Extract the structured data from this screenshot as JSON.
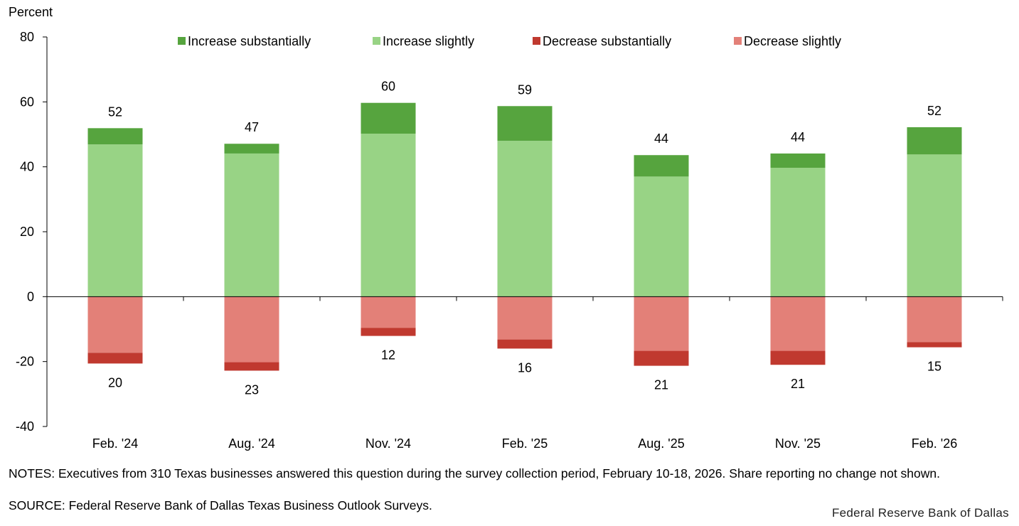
{
  "chart_data": {
    "type": "bar",
    "stacked": true,
    "ylabel": "Percent",
    "ylim": [
      -40,
      80
    ],
    "yticks": [
      -40,
      -20,
      0,
      20,
      40,
      60,
      80
    ],
    "grid": false,
    "legend_placement": "top",
    "categories": [
      "Feb. '24",
      "Aug. '24",
      "Nov. '24",
      "Feb. '25",
      "Aug. '25",
      "Nov. '25",
      "Feb. '26"
    ],
    "series": [
      {
        "name": "Increase substantially",
        "color": "#56A43E",
        "values": [
          5,
          3,
          9.5,
          10.7,
          6.6,
          4.4,
          8.4
        ]
      },
      {
        "name": "Increase slightly",
        "color": "#98D385",
        "values": [
          46.9,
          44.1,
          50.2,
          48.0,
          37.0,
          39.7,
          43.8
        ]
      },
      {
        "name": "Decrease substantially",
        "color": "#C0392F",
        "values": [
          -3.3,
          -2.6,
          -2.5,
          -2.8,
          -4.6,
          -4.3,
          -1.6
        ]
      },
      {
        "name": "Decrease slightly",
        "color": "#E38078",
        "values": [
          -17.3,
          -20.2,
          -9.6,
          -13.2,
          -16.7,
          -16.7,
          -14.0
        ]
      }
    ],
    "increase_totals": [
      "52",
      "47",
      "60",
      "59",
      "44",
      "44",
      "52"
    ],
    "decrease_totals": [
      "20",
      "23",
      "12",
      "16",
      "21",
      "21",
      "15"
    ]
  },
  "notes": "NOTES: Executives from 310 Texas businesses answered this question during the survey collection period, February 10-18, 2026. Share reporting no change not shown.",
  "source": "SOURCE: Federal Reserve Bank of Dallas Texas Business Outlook Surveys.",
  "brand": "Federal Reserve Bank of Dallas"
}
